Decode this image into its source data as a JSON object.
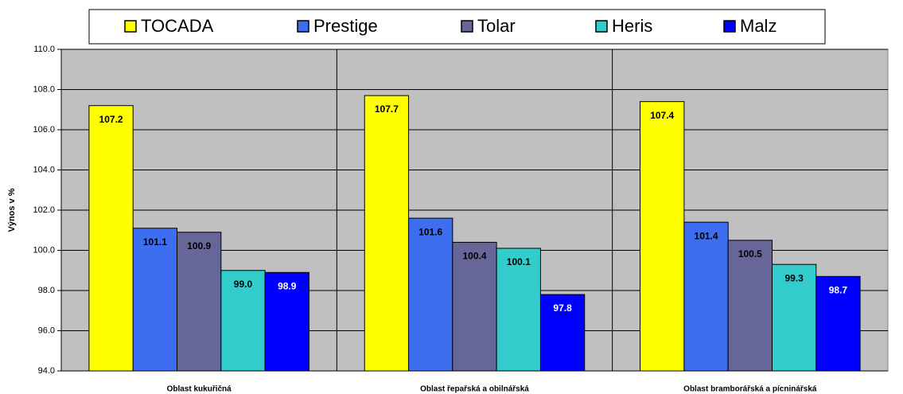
{
  "chart_data": {
    "type": "bar",
    "y_label": "Výnos v %",
    "categories": [
      "Oblast kukuřičná",
      "Oblast řepařská a obilnářská",
      "Oblast bramborářská a pícninářská"
    ],
    "series": [
      {
        "name": "TOCADA",
        "color": "#ffff00",
        "values": [
          107.2,
          107.7,
          107.4
        ]
      },
      {
        "name": "Prestige",
        "color": "#3e6ef0",
        "values": [
          101.1,
          101.6,
          101.4
        ]
      },
      {
        "name": "Tolar",
        "color": "#666699",
        "values": [
          100.9,
          100.4,
          100.5
        ]
      },
      {
        "name": "Heris",
        "color": "#33cccc",
        "values": [
          99,
          100.1,
          99.3
        ],
        "value_labels": [
          "99.0",
          "100.1",
          "99.3"
        ]
      },
      {
        "name": "Malz",
        "color": "#0000ff",
        "values": [
          98.9,
          97.8,
          98.7
        ]
      }
    ],
    "ylim": [
      94,
      110
    ],
    "yticks": [
      {
        "value": 94,
        "label": "94.0"
      },
      {
        "value": 96,
        "label": "96.0"
      },
      {
        "value": 98,
        "label": "98.0"
      },
      {
        "value": 100,
        "label": "100.0"
      },
      {
        "value": 102,
        "label": "102.0"
      },
      {
        "value": 104,
        "label": "104.0"
      },
      {
        "value": 106,
        "label": "106.0"
      },
      {
        "value": 108,
        "label": "108.0"
      },
      {
        "value": 110,
        "label": "110.0"
      }
    ],
    "grid": true,
    "legend": "top",
    "background": "#c0c0c0"
  }
}
